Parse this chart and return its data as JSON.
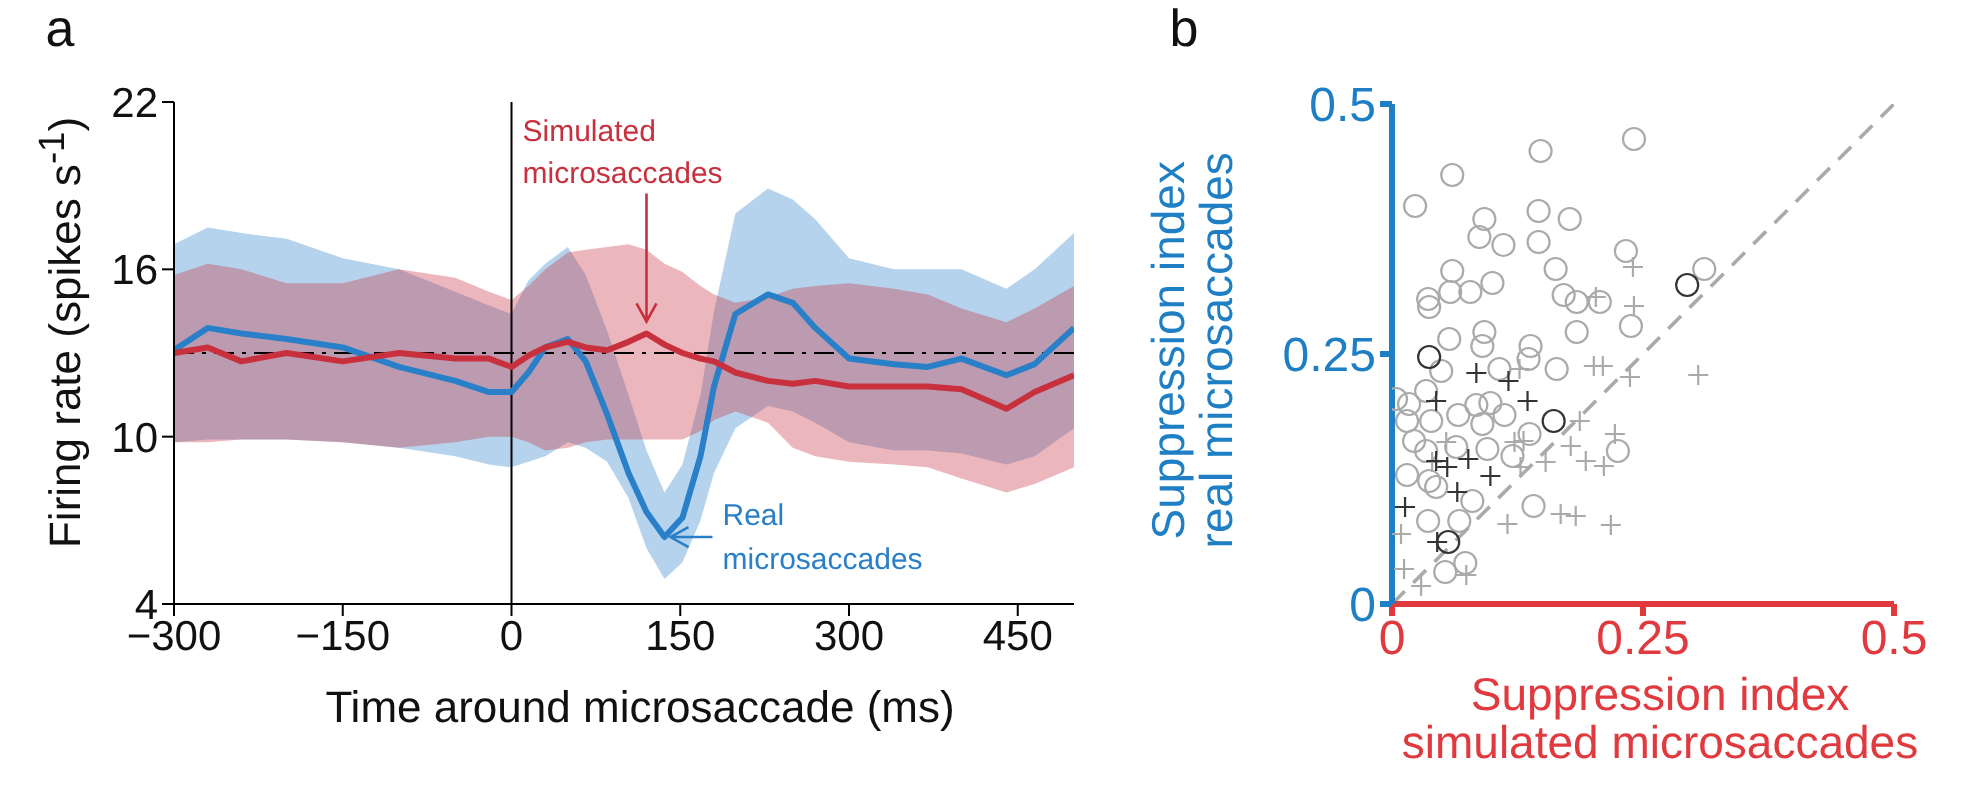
{
  "chart_data": [
    {
      "type": "line",
      "title": "a",
      "xlabel": "Time around microsaccade (ms)",
      "ylabel": "Firing rate (spikes s$^{-1}$)",
      "x": [
        -300,
        -270,
        -240,
        -200,
        -150,
        -100,
        -50,
        -20,
        0,
        15,
        30,
        50,
        66,
        85,
        104,
        120,
        136,
        152,
        168,
        180,
        199,
        228,
        250,
        270,
        300,
        340,
        370,
        400,
        440,
        465,
        500
      ],
      "series": [
        {
          "color": "#2a80c8",
          "values": [
            13.1,
            13.9,
            13.7,
            13.5,
            13.2,
            12.5,
            12.0,
            11.6,
            11.6,
            12.3,
            13.2,
            13.5,
            12.7,
            10.8,
            8.7,
            7.3,
            6.4,
            7.1,
            9.3,
            11.8,
            14.4,
            15.1,
            14.8,
            13.9,
            12.8,
            12.6,
            12.5,
            12.8,
            12.2,
            12.6,
            13.9
          ],
          "upper": [
            16.9,
            17.5,
            17.3,
            17.1,
            16.4,
            16.0,
            15.2,
            14.7,
            14.4,
            15.6,
            16.2,
            16.8,
            15.8,
            13.8,
            11.5,
            9.5,
            8.0,
            9.0,
            11.5,
            14.5,
            18.0,
            18.9,
            18.5,
            17.8,
            16.4,
            16.0,
            16.0,
            16.0,
            15.3,
            16.0,
            17.3
          ],
          "lower": [
            9.8,
            9.9,
            9.9,
            9.9,
            9.8,
            9.6,
            9.3,
            9.0,
            8.9,
            9.1,
            9.3,
            9.8,
            9.6,
            9.1,
            7.8,
            6.0,
            4.9,
            5.5,
            7.0,
            8.7,
            10.3,
            11.1,
            10.9,
            10.5,
            9.8,
            9.5,
            9.5,
            9.4,
            9.0,
            9.3,
            10.3
          ]
        },
        {
          "color": "#c8303e",
          "values": [
            13.0,
            13.2,
            12.7,
            13.0,
            12.7,
            13.0,
            12.8,
            12.8,
            12.5,
            12.9,
            13.2,
            13.4,
            13.2,
            13.1,
            13.4,
            13.7,
            13.3,
            13.0,
            12.8,
            12.7,
            12.3,
            12.0,
            11.9,
            12.0,
            11.8,
            11.8,
            11.8,
            11.7,
            11.0,
            11.6,
            12.2
          ],
          "upper": [
            15.8,
            16.2,
            16.0,
            15.5,
            15.5,
            16.0,
            15.7,
            15.2,
            14.9,
            15.4,
            16.0,
            16.6,
            16.7,
            16.8,
            16.9,
            16.7,
            16.2,
            15.9,
            15.4,
            15.1,
            14.8,
            15.0,
            15.3,
            15.4,
            15.5,
            15.3,
            15.1,
            14.6,
            14.1,
            14.6,
            15.4
          ],
          "lower": [
            9.8,
            9.8,
            9.9,
            9.9,
            9.8,
            9.6,
            9.8,
            10.0,
            10.0,
            9.8,
            9.5,
            9.6,
            9.8,
            9.9,
            9.9,
            9.9,
            9.9,
            9.9,
            10.2,
            10.6,
            10.9,
            10.5,
            9.6,
            9.3,
            9.1,
            9.0,
            8.9,
            8.5,
            8.0,
            8.3,
            8.9
          ]
        }
      ],
      "xlim": [
        -300,
        500
      ],
      "ylim": [
        4,
        22
      ],
      "xticks": [
        -300,
        -150,
        0,
        150,
        300,
        450
      ],
      "yticks": [
        4,
        10,
        16,
        22
      ],
      "ref_lines": [
        {
          "axis": "y",
          "value": 13,
          "color": "#000000",
          "line_style": "dashdot"
        },
        {
          "axis": "x",
          "value": 0,
          "color": "#000000",
          "line_style": "solid"
        }
      ],
      "annotations": [
        {
          "text": "Simulated microsaccades",
          "x": 120,
          "y": 13.7
        },
        {
          "text": "Real microsaccades",
          "x": 136,
          "y": 6.4
        }
      ]
    },
    {
      "type": "scatter",
      "title": "b",
      "xlabel": "Suppression index\nsimulated microsaccades",
      "ylabel": "Suppression index\nreal microsaccades",
      "xlim": [
        0,
        0.5
      ],
      "ylim": [
        0,
        0.5
      ],
      "xticks": [
        0,
        0.25,
        0.5
      ],
      "yticks": [
        0,
        0.25,
        0.5
      ],
      "series": [
        {
          "marker": "circle",
          "color": "#aaaaaa",
          "x": [
            0.241,
            0.148,
            0.06,
            0.023,
            0.146,
            0.092,
            0.177,
            0.087,
            0.111,
            0.146,
            0.233,
            0.06,
            0.163,
            0.311,
            0.036,
            0.037,
            0.058,
            0.078,
            0.1,
            0.171,
            0.184,
            0.207,
            0.238,
            0.184,
            0.092,
            0.057,
            0.09,
            0.138,
            0.136,
            0.107,
            0.049,
            0.164,
            0.034,
            0.004,
            0.017,
            0.015,
            0.039,
            0.066,
            0.084,
            0.098,
            0.112,
            0.09,
            0.022,
            0.034,
            0.064,
            0.095,
            0.12,
            0.137,
            0.225,
            0.015,
            0.037,
            0.08,
            0.036,
            0.067,
            0.141,
            0.073,
            0.053,
            0.044
          ],
          "values": [
            0.465,
            0.453,
            0.429,
            0.398,
            0.393,
            0.385,
            0.385,
            0.367,
            0.359,
            0.362,
            0.353,
            0.333,
            0.335,
            0.335,
            0.305,
            0.297,
            0.312,
            0.312,
            0.321,
            0.309,
            0.302,
            0.302,
            0.278,
            0.272,
            0.272,
            0.265,
            0.258,
            0.258,
            0.245,
            0.235,
            0.233,
            0.235,
            0.213,
            0.205,
            0.2,
            0.183,
            0.183,
            0.189,
            0.199,
            0.201,
            0.189,
            0.18,
            0.163,
            0.153,
            0.157,
            0.155,
            0.148,
            0.17,
            0.153,
            0.129,
            0.123,
            0.103,
            0.083,
            0.083,
            0.098,
            0.041,
            0.032,
            0.117
          ]
        },
        {
          "marker": "cross",
          "color": "#aaaaaa",
          "x": [
            0.24,
            0.241,
            0.203,
            0.201,
            0.21,
            0.237,
            0.305,
            0.127,
            0.187,
            0.222,
            0.178,
            0.193,
            0.211,
            0.153,
            0.122,
            0.131,
            0.115,
            0.168,
            0.183,
            0.218,
            0.009,
            0.012,
            0.029,
            0.074,
            0.054,
            0.04,
            0.128
          ],
          "values": [
            0.337,
            0.298,
            0.307,
            0.238,
            0.238,
            0.227,
            0.229,
            0.235,
            0.183,
            0.17,
            0.158,
            0.143,
            0.138,
            0.142,
            0.162,
            0.163,
            0.08,
            0.09,
            0.088,
            0.079,
            0.07,
            0.035,
            0.018,
            0.029,
            0.162,
            0.142,
            0.137
          ]
        },
        {
          "marker": "circle",
          "color": "#333333",
          "x": [
            0.037,
            0.161,
            0.294,
            0.056
          ],
          "values": [
            0.247,
            0.183,
            0.319,
            0.062
          ]
        },
        {
          "marker": "cross",
          "color": "#333333",
          "x": [
            0.084,
            0.116,
            0.135,
            0.044,
            0.044,
            0.055,
            0.076,
            0.098,
            0.065,
            0.013,
            0.045
          ],
          "values": [
            0.231,
            0.223,
            0.203,
            0.203,
            0.143,
            0.137,
            0.145,
            0.128,
            0.112,
            0.097,
            0.062
          ]
        },
        {
          "type": "line",
          "line_style": "dashed",
          "color": "#aaaaaa",
          "x": [
            0,
            0.5
          ],
          "values": [
            0,
            0.5
          ]
        }
      ]
    }
  ]
}
